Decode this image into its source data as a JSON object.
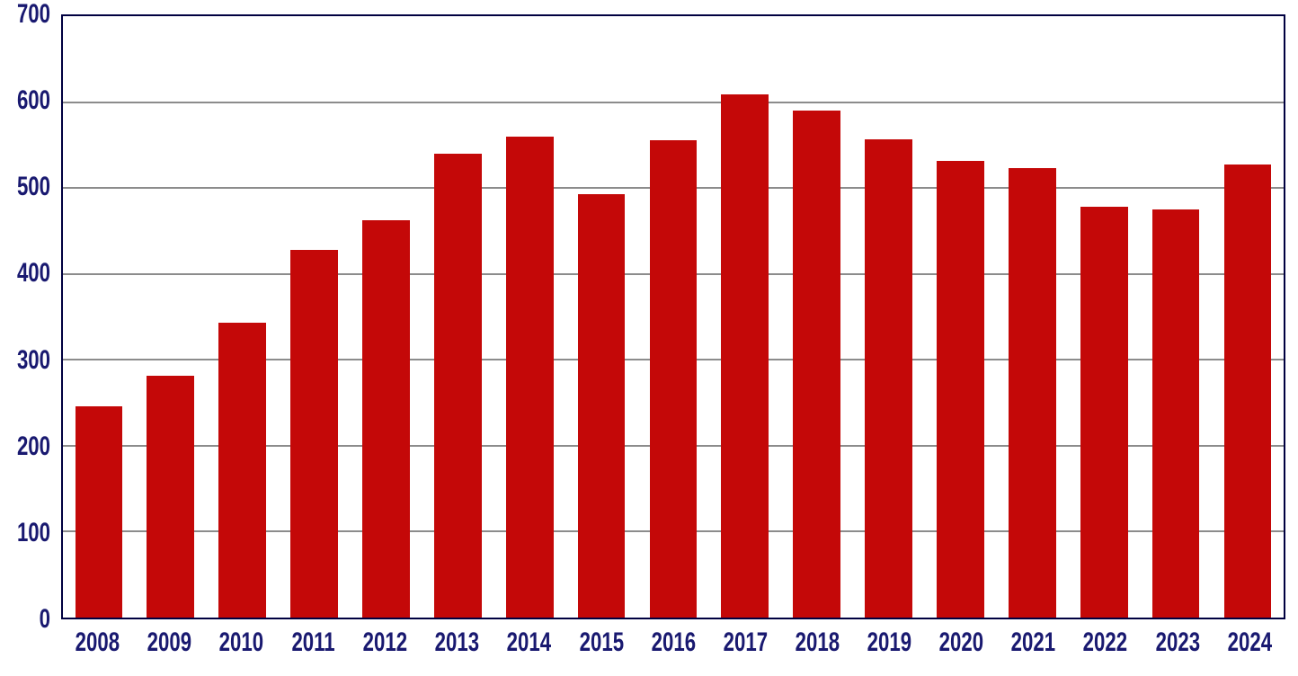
{
  "chart_data": {
    "type": "bar",
    "title": "",
    "xlabel": "",
    "ylabel": "",
    "categories": [
      "2008",
      "2009",
      "2010",
      "2011",
      "2012",
      "2013",
      "2014",
      "2015",
      "2016",
      "2017",
      "2018",
      "2019",
      "2020",
      "2021",
      "2022",
      "2023",
      "2024"
    ],
    "values": [
      246,
      282,
      343,
      428,
      462,
      540,
      560,
      493,
      556,
      609,
      590,
      557,
      532,
      523,
      478,
      475,
      527
    ],
    "ylim": [
      0,
      700
    ],
    "ytick_step": 100,
    "yticks": [
      0,
      100,
      200,
      300,
      400,
      500,
      600,
      700
    ],
    "grid": true,
    "legend": false,
    "colors": {
      "bar": "#C40808",
      "axis_border": "#000040",
      "gridline": "#8C8C8C",
      "tick_label": "#191970",
      "background": "#FFFFFF"
    }
  }
}
